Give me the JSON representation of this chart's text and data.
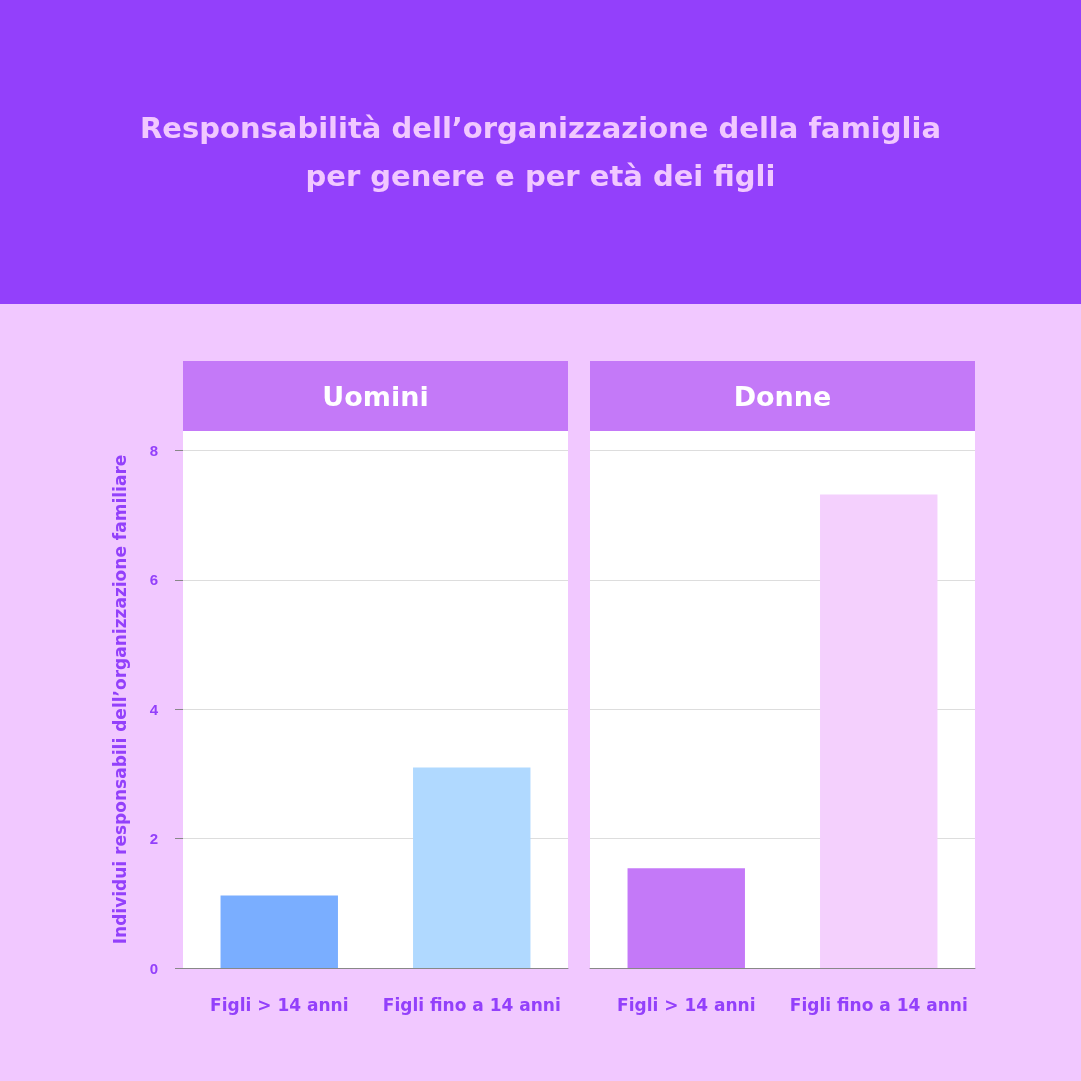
{
  "chart_data": [
    {
      "type": "bar",
      "title": "Responsabilità dell’organizzazione della famiglia per genere e per età dei figli",
      "subtitle": "Uomini",
      "ylabel": "Individui responsabili dell’organizzazione familiare",
      "categories": [
        "Figli > 14 anni",
        "Figli fino a 14 anni"
      ],
      "values": [
        1.12,
        3.1
      ],
      "colors": [
        "#7aaeff",
        "#b0d9ff"
      ],
      "ylim": [
        0,
        8.3
      ],
      "yticks": [
        0,
        2,
        4,
        6,
        8
      ],
      "grid": "y"
    },
    {
      "type": "bar",
      "subtitle": "Donne",
      "categories": [
        "Figli > 14 anni",
        "Figli fino a 14 anni"
      ],
      "values": [
        1.54,
        7.32
      ],
      "colors": [
        "#c479f8",
        "#f4d0fd"
      ],
      "ylim": [
        0,
        8.3
      ],
      "yticks": [
        0,
        2,
        4,
        6,
        8
      ],
      "grid": "y",
      "tick_labels": "x"
    }
  ]
}
